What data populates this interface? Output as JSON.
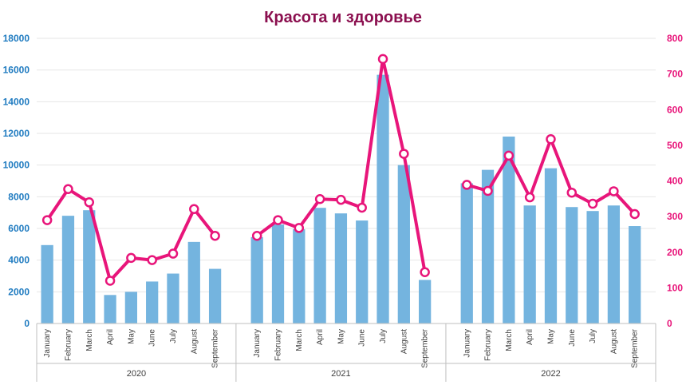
{
  "chart_data": {
    "type": "bar+line",
    "title": "Красота и здоровье",
    "colors": {
      "title": "#8B0F4F",
      "bar": "#74B4DF",
      "line": "#E8157A",
      "left_axis": "#1F7BC0",
      "right_axis": "#E8157A",
      "grid": "#E6E6E6",
      "axis_line": "#BFBFBF"
    },
    "groups": [
      {
        "label": "2020",
        "categories": [
          "January",
          "February",
          "March",
          "April",
          "May",
          "June",
          "July",
          "August",
          "September"
        ],
        "bars": [
          4950,
          6800,
          7150,
          1800,
          2000,
          2650,
          3150,
          5150,
          3450
        ],
        "line": [
          290,
          377,
          340,
          120,
          184,
          178,
          196,
          321,
          246
        ]
      },
      {
        "label": "2021",
        "categories": [
          "January",
          "February",
          "March",
          "April",
          "May",
          "June",
          "July",
          "August",
          "September"
        ],
        "bars": [
          5450,
          6250,
          5950,
          7300,
          6950,
          6500,
          15700,
          10000,
          2750
        ],
        "line": [
          246,
          290,
          268,
          349,
          347,
          325,
          742,
          476,
          144
        ]
      },
      {
        "label": "2022",
        "categories": [
          "January",
          "February",
          "March",
          "April",
          "May",
          "June",
          "July",
          "August",
          "September"
        ],
        "bars": [
          8850,
          9700,
          11800,
          7450,
          9800,
          7350,
          7100,
          7450,
          6150
        ],
        "line": [
          389,
          372,
          471,
          354,
          517,
          367,
          336,
          371,
          307
        ]
      }
    ],
    "left_axis": {
      "min": 0,
      "max": 18000,
      "ticks": [
        "0",
        "2000",
        "4000",
        "6000",
        "8000",
        "10000",
        "12000",
        "14000",
        "16000",
        "18000"
      ]
    },
    "right_axis": {
      "min": 0,
      "max": 800,
      "ticks": [
        "0",
        "100",
        "200",
        "300",
        "400",
        "500",
        "600",
        "700",
        "800"
      ]
    },
    "grid": true
  }
}
